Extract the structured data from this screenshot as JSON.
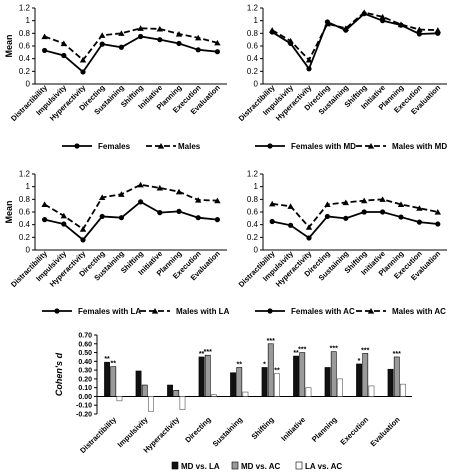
{
  "figure": {
    "background": "#ffffff",
    "line_color": "#000000"
  },
  "chart_data": [
    {
      "type": "line",
      "ylabel": "Mean",
      "ylim": [
        0,
        1.2
      ],
      "yticks": [
        "0",
        "0.2",
        "0.4",
        "0.6",
        "0.8",
        "1",
        "1.2"
      ],
      "categories": [
        "Distractibility",
        "Impulsivity",
        "Hyperactivity",
        "Directing",
        "Sustaining",
        "Shifting",
        "Initiative",
        "Planning",
        "Execution",
        "Evaluation"
      ],
      "grid": false,
      "legend": "bottom",
      "series": [
        {
          "name": "Females",
          "style": "solid",
          "values": [
            0.53,
            0.45,
            0.19,
            0.63,
            0.58,
            0.75,
            0.7,
            0.64,
            0.54,
            0.51
          ]
        },
        {
          "name": "Males",
          "style": "dashed",
          "values": [
            0.75,
            0.64,
            0.38,
            0.77,
            0.8,
            0.88,
            0.87,
            0.79,
            0.73,
            0.65
          ]
        }
      ]
    },
    {
      "type": "line",
      "ylabel": "",
      "ylim": [
        0,
        1.2
      ],
      "yticks": [
        "0",
        "0.2",
        "0.4",
        "0.6",
        "0.8",
        "1",
        "1.2"
      ],
      "categories": [
        "Distractibility",
        "Impulsivity",
        "Hyperactivity",
        "Directing",
        "Sustaining",
        "Shifting",
        "Initiative",
        "Planning",
        "Execution",
        "Evaluation"
      ],
      "grid": false,
      "legend": "bottom",
      "series": [
        {
          "name": "Females with MD",
          "style": "solid",
          "values": [
            0.82,
            0.64,
            0.24,
            0.98,
            0.85,
            1.11,
            1.0,
            0.93,
            0.79,
            0.8
          ]
        },
        {
          "name": "Males with MD",
          "style": "dashed",
          "values": [
            0.85,
            0.68,
            0.38,
            0.95,
            0.88,
            1.13,
            1.06,
            0.94,
            0.86,
            0.85
          ]
        }
      ]
    },
    {
      "type": "line",
      "ylabel": "Mean",
      "ylim": [
        0,
        1.2
      ],
      "yticks": [
        "0",
        "0.2",
        "0.4",
        "0.6",
        "0.8",
        "1",
        "1.2"
      ],
      "categories": [
        "Distractibility",
        "Impulsivity",
        "Hyperactivity",
        "Directing",
        "Sustaining",
        "Shifting",
        "Initiative",
        "Planning",
        "Execution",
        "Evaluation"
      ],
      "grid": false,
      "legend": "bottom",
      "series": [
        {
          "name": "Females with LA",
          "style": "solid",
          "values": [
            0.48,
            0.41,
            0.16,
            0.53,
            0.51,
            0.76,
            0.59,
            0.61,
            0.51,
            0.48
          ]
        },
        {
          "name": "Males with LA",
          "style": "dashed",
          "values": [
            0.72,
            0.54,
            0.33,
            0.83,
            0.88,
            1.03,
            0.98,
            0.92,
            0.79,
            0.78
          ]
        }
      ]
    },
    {
      "type": "line",
      "ylabel": "",
      "ylim": [
        0,
        1.2
      ],
      "yticks": [
        "0",
        "0.2",
        "0.4",
        "0.6",
        "0.8",
        "1",
        "1.2"
      ],
      "categories": [
        "Distractibility",
        "Impulsivity",
        "Hyperactivity",
        "Directing",
        "Sustaining",
        "Shifting",
        "Initiative",
        "Planning",
        "Execution",
        "Evaluation"
      ],
      "grid": false,
      "legend": "bottom",
      "series": [
        {
          "name": "Females with AC",
          "style": "solid",
          "values": [
            0.45,
            0.39,
            0.19,
            0.53,
            0.5,
            0.6,
            0.6,
            0.52,
            0.44,
            0.41
          ]
        },
        {
          "name": "Males with AC",
          "style": "dashed",
          "values": [
            0.73,
            0.69,
            0.36,
            0.72,
            0.75,
            0.78,
            0.8,
            0.72,
            0.66,
            0.6
          ]
        }
      ]
    },
    {
      "type": "bar",
      "ylabel": "Cohen's d",
      "ylim": [
        -0.2,
        0.7
      ],
      "yticks": [
        "-0.20",
        "-0.10",
        "0.00",
        "0.10",
        "0.20",
        "0.30",
        "0.40",
        "0.50",
        "0.60",
        "0.70"
      ],
      "categories": [
        "Distractibility",
        "Impulsivity",
        "Hyperactivity",
        "Directing",
        "Sustaining",
        "Shifting",
        "Initiative",
        "Planning",
        "Execution",
        "Evaluation"
      ],
      "grid": false,
      "legend": "bottom",
      "series": [
        {
          "name": "MD vs. LA",
          "color": "#111111",
          "values": [
            0.39,
            0.29,
            0.13,
            0.45,
            0.27,
            0.33,
            0.46,
            0.33,
            0.37,
            0.31
          ]
        },
        {
          "name": "MD vs. AC",
          "color": "#9a9a9a",
          "values": [
            0.34,
            0.13,
            0.07,
            0.47,
            0.33,
            0.6,
            0.5,
            0.51,
            0.49,
            0.45
          ]
        },
        {
          "name": "LA vs. AC",
          "color": "#ffffff",
          "values": [
            -0.05,
            -0.17,
            -0.15,
            0.02,
            0.05,
            0.26,
            0.1,
            0.2,
            0.12,
            0.14
          ]
        }
      ],
      "annotations": [
        {
          "category": "Distractibility",
          "series": 0,
          "text": "**"
        },
        {
          "category": "Distractibility",
          "series": 1,
          "text": "**"
        },
        {
          "category": "Directing",
          "series": 0,
          "text": "**"
        },
        {
          "category": "Directing",
          "series": 1,
          "text": "***"
        },
        {
          "category": "Sustaining",
          "series": 1,
          "text": "**"
        },
        {
          "category": "Shifting",
          "series": 0,
          "text": "*"
        },
        {
          "category": "Shifting",
          "series": 1,
          "text": "***"
        },
        {
          "category": "Shifting",
          "series": 2,
          "text": "**"
        },
        {
          "category": "Initiative",
          "series": 0,
          "text": "**"
        },
        {
          "category": "Initiative",
          "series": 1,
          "text": "***"
        },
        {
          "category": "Planning",
          "series": 1,
          "text": "***"
        },
        {
          "category": "Execution",
          "series": 0,
          "text": "*"
        },
        {
          "category": "Execution",
          "series": 1,
          "text": "***"
        },
        {
          "category": "Evaluation",
          "series": 1,
          "text": "***"
        }
      ]
    }
  ]
}
